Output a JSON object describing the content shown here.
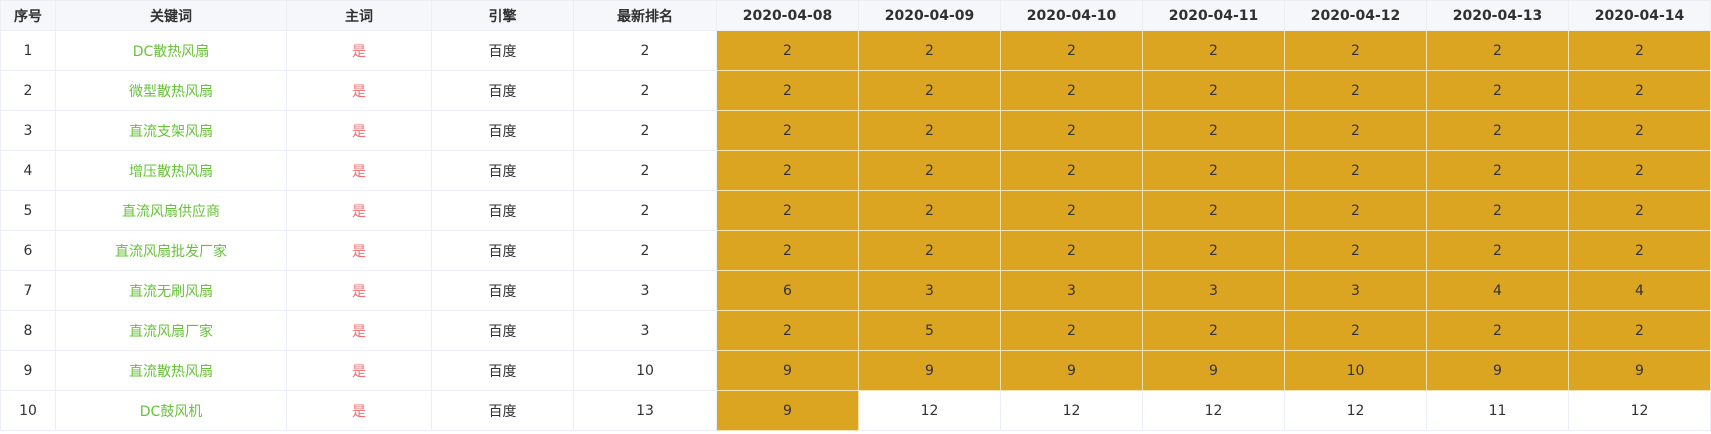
{
  "columns": [
    "序号",
    "关键词",
    "主词",
    "引擎",
    "最新排名",
    "2020-04-08",
    "2020-04-09",
    "2020-04-10",
    "2020-04-11",
    "2020-04-12",
    "2020-04-13",
    "2020-04-14"
  ],
  "highlight_color": "#dba521",
  "keyword_color": "#67c23a",
  "main_word_color": "#f56c6c",
  "rows": [
    {
      "index": "1",
      "keyword": "DC散热风扇",
      "main_word": "是",
      "engine": "百度",
      "latest_rank": "2",
      "ranks": [
        {
          "v": "2",
          "hl": true
        },
        {
          "v": "2",
          "hl": true
        },
        {
          "v": "2",
          "hl": true
        },
        {
          "v": "2",
          "hl": true
        },
        {
          "v": "2",
          "hl": true
        },
        {
          "v": "2",
          "hl": true
        },
        {
          "v": "2",
          "hl": true
        }
      ]
    },
    {
      "index": "2",
      "keyword": "微型散热风扇",
      "main_word": "是",
      "engine": "百度",
      "latest_rank": "2",
      "ranks": [
        {
          "v": "2",
          "hl": true
        },
        {
          "v": "2",
          "hl": true
        },
        {
          "v": "2",
          "hl": true
        },
        {
          "v": "2",
          "hl": true
        },
        {
          "v": "2",
          "hl": true
        },
        {
          "v": "2",
          "hl": true
        },
        {
          "v": "2",
          "hl": true
        }
      ]
    },
    {
      "index": "3",
      "keyword": "直流支架风扇",
      "main_word": "是",
      "engine": "百度",
      "latest_rank": "2",
      "ranks": [
        {
          "v": "2",
          "hl": true
        },
        {
          "v": "2",
          "hl": true
        },
        {
          "v": "2",
          "hl": true
        },
        {
          "v": "2",
          "hl": true
        },
        {
          "v": "2",
          "hl": true
        },
        {
          "v": "2",
          "hl": true
        },
        {
          "v": "2",
          "hl": true
        }
      ]
    },
    {
      "index": "4",
      "keyword": "增压散热风扇",
      "main_word": "是",
      "engine": "百度",
      "latest_rank": "2",
      "ranks": [
        {
          "v": "2",
          "hl": true
        },
        {
          "v": "2",
          "hl": true
        },
        {
          "v": "2",
          "hl": true
        },
        {
          "v": "2",
          "hl": true
        },
        {
          "v": "2",
          "hl": true
        },
        {
          "v": "2",
          "hl": true
        },
        {
          "v": "2",
          "hl": true
        }
      ]
    },
    {
      "index": "5",
      "keyword": "直流风扇供应商",
      "main_word": "是",
      "engine": "百度",
      "latest_rank": "2",
      "ranks": [
        {
          "v": "2",
          "hl": true
        },
        {
          "v": "2",
          "hl": true
        },
        {
          "v": "2",
          "hl": true
        },
        {
          "v": "2",
          "hl": true
        },
        {
          "v": "2",
          "hl": true
        },
        {
          "v": "2",
          "hl": true
        },
        {
          "v": "2",
          "hl": true
        }
      ]
    },
    {
      "index": "6",
      "keyword": "直流风扇批发厂家",
      "main_word": "是",
      "engine": "百度",
      "latest_rank": "2",
      "ranks": [
        {
          "v": "2",
          "hl": true
        },
        {
          "v": "2",
          "hl": true
        },
        {
          "v": "2",
          "hl": true
        },
        {
          "v": "2",
          "hl": true
        },
        {
          "v": "2",
          "hl": true
        },
        {
          "v": "2",
          "hl": true
        },
        {
          "v": "2",
          "hl": true
        }
      ]
    },
    {
      "index": "7",
      "keyword": "直流无刷风扇",
      "main_word": "是",
      "engine": "百度",
      "latest_rank": "3",
      "ranks": [
        {
          "v": "6",
          "hl": true
        },
        {
          "v": "3",
          "hl": true
        },
        {
          "v": "3",
          "hl": true
        },
        {
          "v": "3",
          "hl": true
        },
        {
          "v": "3",
          "hl": true
        },
        {
          "v": "4",
          "hl": true
        },
        {
          "v": "4",
          "hl": true
        }
      ]
    },
    {
      "index": "8",
      "keyword": "直流风扇厂家",
      "main_word": "是",
      "engine": "百度",
      "latest_rank": "3",
      "ranks": [
        {
          "v": "2",
          "hl": true
        },
        {
          "v": "5",
          "hl": true
        },
        {
          "v": "2",
          "hl": true
        },
        {
          "v": "2",
          "hl": true
        },
        {
          "v": "2",
          "hl": true
        },
        {
          "v": "2",
          "hl": true
        },
        {
          "v": "2",
          "hl": true
        }
      ]
    },
    {
      "index": "9",
      "keyword": "直流散热风扇",
      "main_word": "是",
      "engine": "百度",
      "latest_rank": "10",
      "ranks": [
        {
          "v": "9",
          "hl": true
        },
        {
          "v": "9",
          "hl": true
        },
        {
          "v": "9",
          "hl": true
        },
        {
          "v": "9",
          "hl": true
        },
        {
          "v": "10",
          "hl": true
        },
        {
          "v": "9",
          "hl": true
        },
        {
          "v": "9",
          "hl": true
        }
      ]
    },
    {
      "index": "10",
      "keyword": "DC鼓风机",
      "main_word": "是",
      "engine": "百度",
      "latest_rank": "13",
      "ranks": [
        {
          "v": "9",
          "hl": true
        },
        {
          "v": "12",
          "hl": false
        },
        {
          "v": "12",
          "hl": false
        },
        {
          "v": "12",
          "hl": false
        },
        {
          "v": "12",
          "hl": false
        },
        {
          "v": "11",
          "hl": false
        },
        {
          "v": "12",
          "hl": false
        }
      ]
    }
  ]
}
